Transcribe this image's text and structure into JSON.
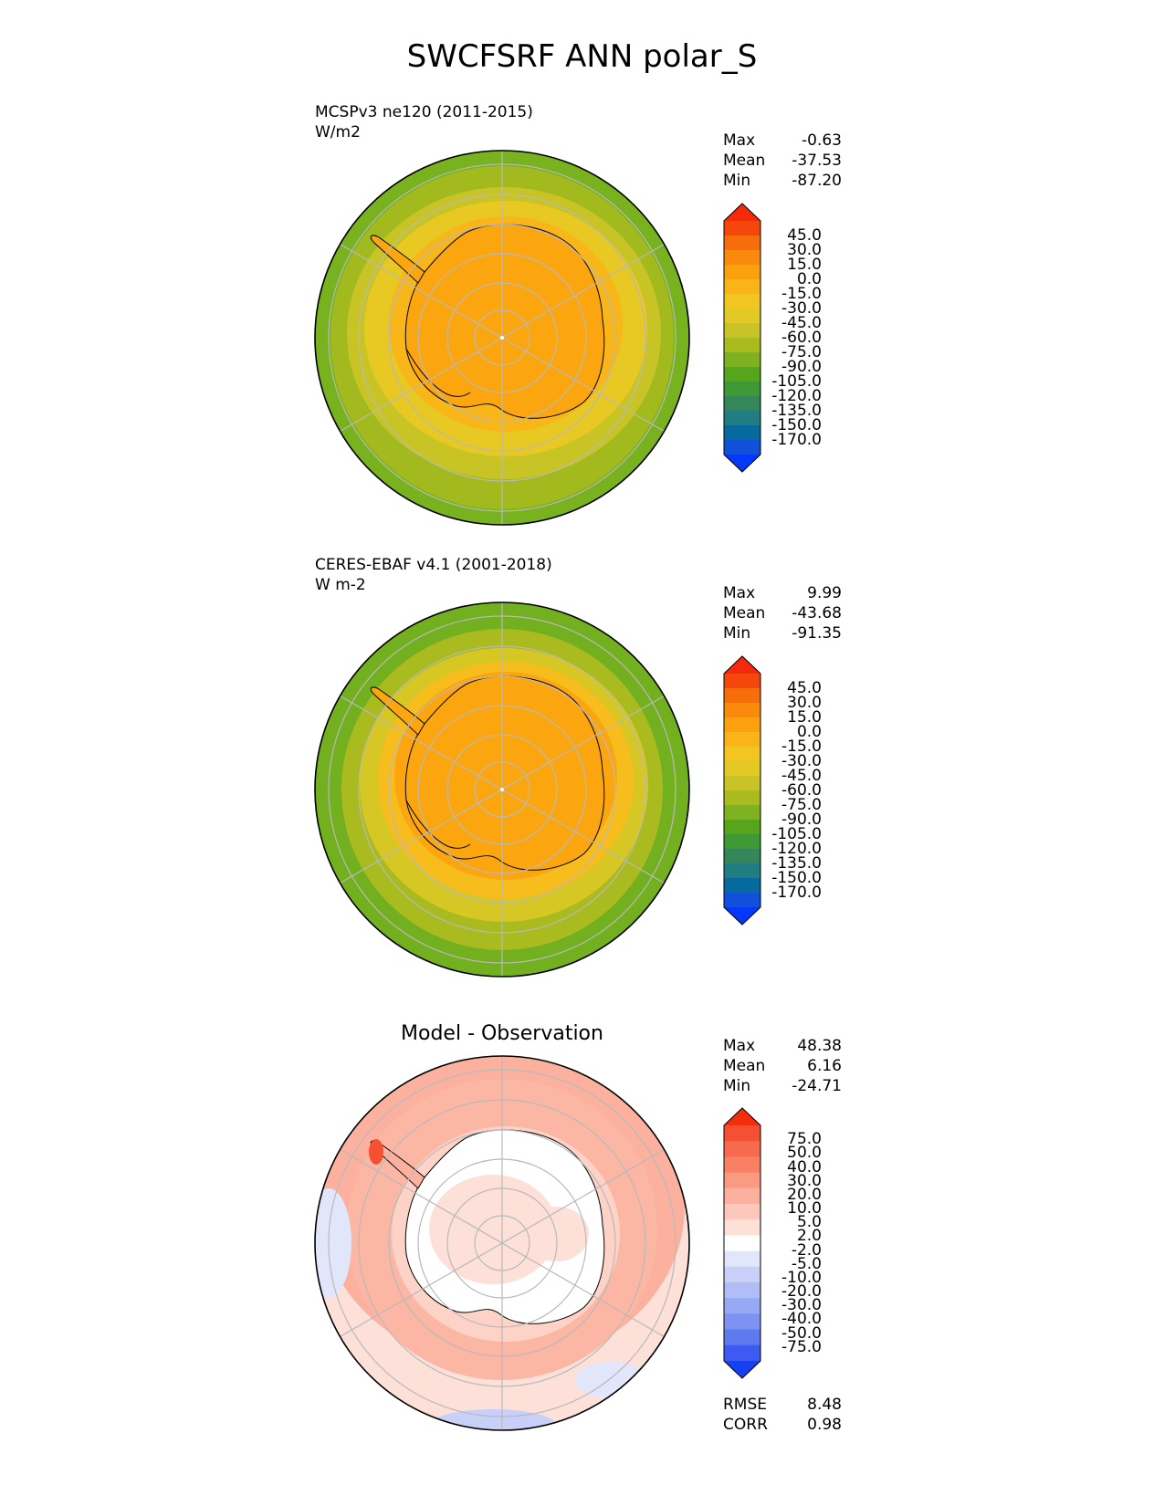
{
  "figure": {
    "title": "SWCFSRF ANN polar_S"
  },
  "panels": [
    {
      "title": "MCSPv3 ne120 (2011-2015)",
      "units": "W/m2",
      "stats": {
        "max_label": "Max",
        "max": "-0.63",
        "mean_label": "Mean",
        "mean": "-37.53",
        "min_label": "Min",
        "min": "-87.20"
      }
    },
    {
      "title": "CERES-EBAF v4.1 (2001-2018)",
      "units": "W m-2",
      "stats": {
        "max_label": "Max",
        "max": "9.99",
        "mean_label": "Mean",
        "mean": "-43.68",
        "min_label": "Min",
        "min": "-91.35"
      }
    },
    {
      "title": "Model - Observation",
      "stats": {
        "max_label": "Max",
        "max": "48.38",
        "mean_label": "Mean",
        "mean": "6.16",
        "min_label": "Min",
        "min": "-24.71"
      },
      "metrics": {
        "rmse_label": "RMSE",
        "rmse": "8.48",
        "corr_label": "CORR",
        "corr": "0.98"
      }
    }
  ],
  "colorbars": {
    "main": {
      "labels": [
        "45.0",
        "30.0",
        "15.0",
        "0.0",
        "-15.0",
        "-30.0",
        "-45.0",
        "-60.0",
        "-75.0",
        "-90.0",
        "-105.0",
        "-120.0",
        "-135.0",
        "-150.0",
        "-170.0"
      ],
      "colors": [
        "#f52a0c",
        "#f5470c",
        "#f76c0b",
        "#fa8a0c",
        "#fba10f",
        "#fbb31a",
        "#f2c521",
        "#e2c926",
        "#c8c326",
        "#a9bb1f",
        "#7fb120",
        "#57a51a",
        "#3e9a35",
        "#35865a",
        "#207d82",
        "#066a9f",
        "#1150d9",
        "#0438fb"
      ]
    },
    "diff": {
      "labels": [
        "75.0",
        "50.0",
        "40.0",
        "30.0",
        "20.0",
        "10.0",
        "5.0",
        "2.0",
        "-2.0",
        "-5.0",
        "-10.0",
        "-20.0",
        "-30.0",
        "-40.0",
        "-50.0",
        "-75.0"
      ],
      "colors": [
        "#f42d0c",
        "#f65033",
        "#f86a4e",
        "#fa8064",
        "#fb9a82",
        "#fcb19f",
        "#fdc8bc",
        "#fde0d8",
        "#ffffff",
        "#e2e6fb",
        "#c8d0f8",
        "#b1bdf7",
        "#97a8f4",
        "#7d92f2",
        "#5f79ef",
        "#3d5bf0",
        "#1640f3"
      ]
    }
  },
  "chart_data": [
    {
      "type": "heatmap",
      "title": "MCSPv3 ne120 (2011-2015)",
      "projection": "south polar stereographic",
      "units": "W/m2",
      "max": -0.63,
      "mean": -37.53,
      "min": -87.2,
      "levels": [
        -170,
        -150,
        -135,
        -120,
        -105,
        -90,
        -75,
        -60,
        -45,
        -30,
        -15,
        0,
        15,
        30,
        45
      ]
    },
    {
      "type": "heatmap",
      "title": "CERES-EBAF v4.1 (2001-2018)",
      "projection": "south polar stereographic",
      "units": "W m-2",
      "max": 9.99,
      "mean": -43.68,
      "min": -91.35,
      "levels": [
        -170,
        -150,
        -135,
        -120,
        -105,
        -90,
        -75,
        -60,
        -45,
        -30,
        -15,
        0,
        15,
        30,
        45
      ]
    },
    {
      "type": "heatmap",
      "title": "Model - Observation",
      "projection": "south polar stereographic",
      "max": 48.38,
      "mean": 6.16,
      "min": -24.71,
      "rmse": 8.48,
      "corr": 0.98,
      "levels": [
        -75,
        -50,
        -40,
        -30,
        -20,
        -10,
        -5,
        -2,
        2,
        5,
        10,
        20,
        30,
        40,
        50,
        75
      ]
    }
  ]
}
